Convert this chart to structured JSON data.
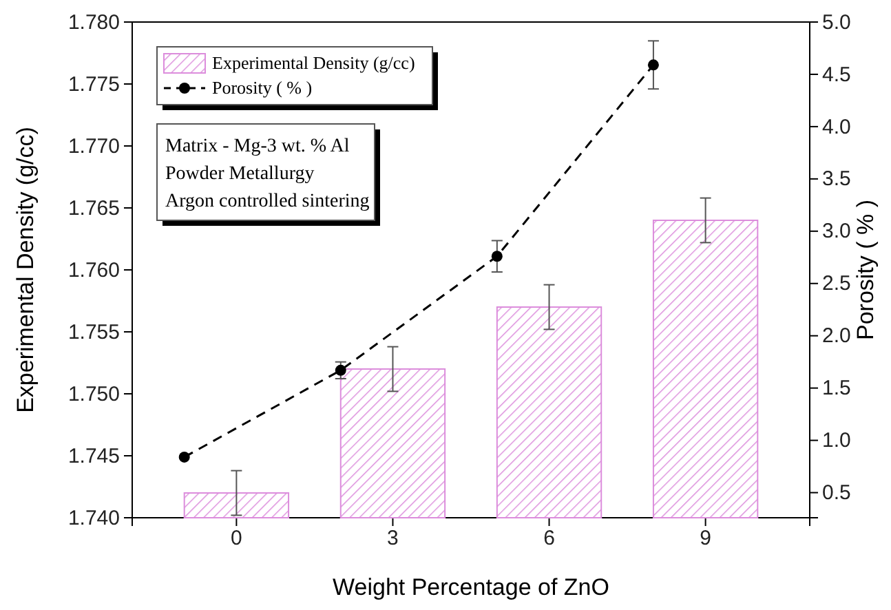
{
  "chart_data": {
    "type": "bar",
    "xlabel": "Weight Percentage of ZnO",
    "ylabel": "Experimental Density (g/cc)",
    "y2label": "Porosity ( % )",
    "xlim": [
      -2,
      11
    ],
    "xticks": [
      0,
      3,
      6,
      9
    ],
    "ylim": [
      1.74,
      1.78
    ],
    "yticks": [
      {
        "value": 1.74,
        "label": "1.740"
      },
      1.745,
      {
        "value": 1.75,
        "label": "1.750"
      },
      1.755,
      {
        "value": 1.76,
        "label": "1.760"
      },
      1.765,
      {
        "value": 1.77,
        "label": "1.770"
      },
      1.775,
      {
        "value": 1.78,
        "label": "1.780"
      }
    ],
    "y2lim": [
      0.26,
      5.0
    ],
    "y2ticks": [
      0.5,
      {
        "value": 1,
        "label": "1.0"
      },
      1.5,
      {
        "value": 2,
        "label": "2.0"
      },
      2.5,
      {
        "value": 3,
        "label": "3.0"
      },
      3.5,
      {
        "value": 4,
        "label": "4.0"
      },
      4.5,
      {
        "value": 5,
        "label": "5.0"
      }
    ],
    "series": [
      {
        "name": "Experimental Density (g/cc)",
        "color": "#dc8ddc",
        "x": [
          0,
          3,
          6,
          9
        ],
        "values": [
          1.742,
          1.752,
          1.757,
          1.764
        ],
        "errors": [
          0.0018,
          0.0018,
          0.0018,
          0.0018
        ]
      },
      {
        "type": "line",
        "axis": "y2",
        "name": "Porosity ( % )",
        "color": "#000000",
        "x": [
          -1,
          2,
          5,
          8
        ],
        "values": [
          0.84,
          1.67,
          2.76,
          4.59
        ],
        "errors": [
          null,
          0.08,
          0.15,
          0.23
        ],
        "marker": "circle",
        "line_style": "dashed"
      }
    ],
    "legend": "top left",
    "grid": false,
    "annotations": [
      "Matrix - Mg-3 wt. % Al",
      "Powder Metallurgy",
      "Argon controlled sintering"
    ]
  }
}
